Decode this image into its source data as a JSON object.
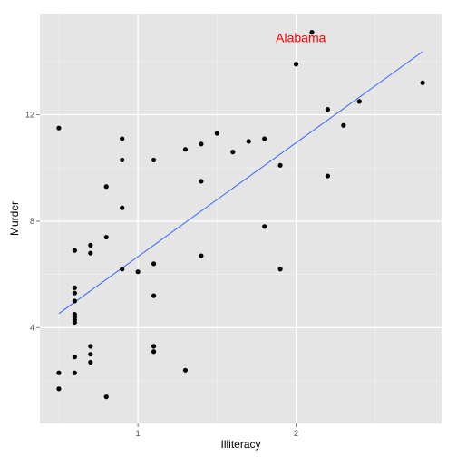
{
  "chart_data": {
    "type": "scatter",
    "xlabel": "Illiteracy",
    "ylabel": "Murder",
    "xlim": [
      0.38,
      2.92
    ],
    "ylim": [
      0.4,
      15.8
    ],
    "x_ticks": [
      {
        "value": 1,
        "label": "1"
      },
      {
        "value": 2,
        "label": "2"
      }
    ],
    "y_ticks": [
      {
        "value": 4,
        "label": "4"
      },
      {
        "value": 8,
        "label": "8"
      },
      {
        "value": 12,
        "label": "12"
      }
    ],
    "grid": true,
    "legend": "none",
    "colors": {
      "panel": "#e5e5e5",
      "grid_major": "#ffffff",
      "grid_minor": "#f2f2f2",
      "point": "#000000",
      "fit_line": "#3366ff",
      "annotation": "#ff0000"
    },
    "points": [
      {
        "x": 0.5,
        "y": 11.5
      },
      {
        "x": 0.5,
        "y": 2.3
      },
      {
        "x": 0.5,
        "y": 1.7
      },
      {
        "x": 0.6,
        "y": 6.9
      },
      {
        "x": 0.6,
        "y": 5.5
      },
      {
        "x": 0.6,
        "y": 5.3
      },
      {
        "x": 0.6,
        "y": 5.0
      },
      {
        "x": 0.6,
        "y": 4.5
      },
      {
        "x": 0.6,
        "y": 4.4
      },
      {
        "x": 0.6,
        "y": 4.3
      },
      {
        "x": 0.6,
        "y": 4.2
      },
      {
        "x": 0.6,
        "y": 2.9
      },
      {
        "x": 0.6,
        "y": 2.3
      },
      {
        "x": 0.7,
        "y": 7.1
      },
      {
        "x": 0.7,
        "y": 6.8
      },
      {
        "x": 0.7,
        "y": 3.3
      },
      {
        "x": 0.7,
        "y": 3.0
      },
      {
        "x": 0.7,
        "y": 2.7
      },
      {
        "x": 0.8,
        "y": 9.3
      },
      {
        "x": 0.8,
        "y": 7.4
      },
      {
        "x": 0.8,
        "y": 1.4
      },
      {
        "x": 0.9,
        "y": 11.1
      },
      {
        "x": 0.9,
        "y": 10.3
      },
      {
        "x": 0.9,
        "y": 8.5
      },
      {
        "x": 0.9,
        "y": 6.2
      },
      {
        "x": 1.0,
        "y": 6.1
      },
      {
        "x": 1.1,
        "y": 10.3
      },
      {
        "x": 1.1,
        "y": 6.4
      },
      {
        "x": 1.1,
        "y": 5.2
      },
      {
        "x": 1.1,
        "y": 3.3
      },
      {
        "x": 1.1,
        "y": 3.1
      },
      {
        "x": 1.3,
        "y": 10.7
      },
      {
        "x": 1.3,
        "y": 2.4
      },
      {
        "x": 1.4,
        "y": 10.9
      },
      {
        "x": 1.4,
        "y": 9.5
      },
      {
        "x": 1.4,
        "y": 6.7
      },
      {
        "x": 1.5,
        "y": 11.3
      },
      {
        "x": 1.6,
        "y": 10.6
      },
      {
        "x": 1.7,
        "y": 11.0
      },
      {
        "x": 1.8,
        "y": 11.1
      },
      {
        "x": 1.8,
        "y": 7.8
      },
      {
        "x": 1.9,
        "y": 10.1
      },
      {
        "x": 1.9,
        "y": 6.2
      },
      {
        "x": 2.0,
        "y": 13.9
      },
      {
        "x": 2.1,
        "y": 15.1
      },
      {
        "x": 2.2,
        "y": 12.2
      },
      {
        "x": 2.2,
        "y": 9.7
      },
      {
        "x": 2.3,
        "y": 11.6
      },
      {
        "x": 2.4,
        "y": 12.5
      },
      {
        "x": 2.8,
        "y": 13.2
      }
    ],
    "fit_line": {
      "x": [
        0.5,
        2.8
      ],
      "y": [
        4.53,
        14.37
      ]
    },
    "annotation": {
      "text": "Alabama",
      "x": 2.03,
      "y": 14.9
    }
  }
}
